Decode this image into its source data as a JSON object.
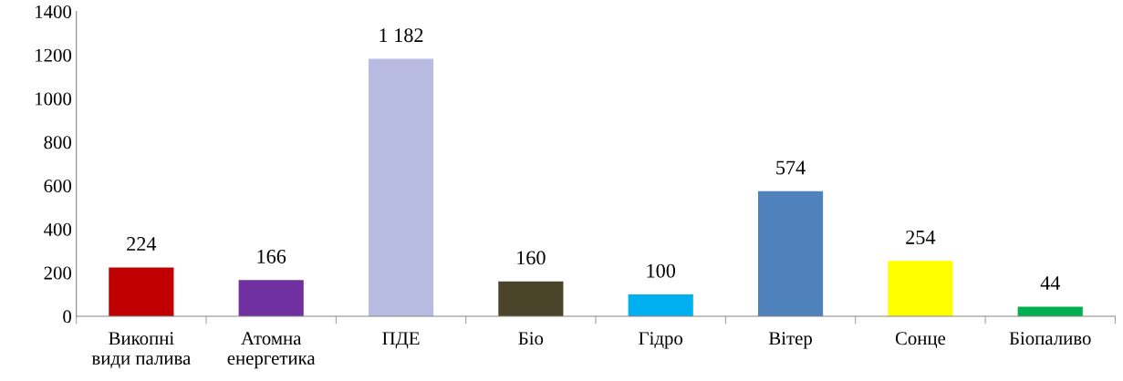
{
  "chart_data": {
    "type": "bar",
    "categories": [
      "Викопні\nвиди палива",
      "Атомна\nенергетика",
      "ПДЕ",
      "Біо",
      "Гідро",
      "Вітер",
      "Сонце",
      "Біопаливо"
    ],
    "values": [
      224,
      166,
      1182,
      160,
      100,
      574,
      254,
      44
    ],
    "colors": [
      "#c00000",
      "#7030a0",
      "#b8bce0",
      "#4a442a",
      "#00b0f0",
      "#4f81bd",
      "#ffff00",
      "#00b050"
    ],
    "value_labels": [
      "224",
      "166",
      "1 182",
      "160",
      "100",
      "574",
      "254",
      "44"
    ],
    "ylim": [
      0,
      1400
    ],
    "yticks": [
      0,
      200,
      400,
      600,
      800,
      1000,
      1200,
      1400
    ],
    "grid": false,
    "legend": false
  }
}
